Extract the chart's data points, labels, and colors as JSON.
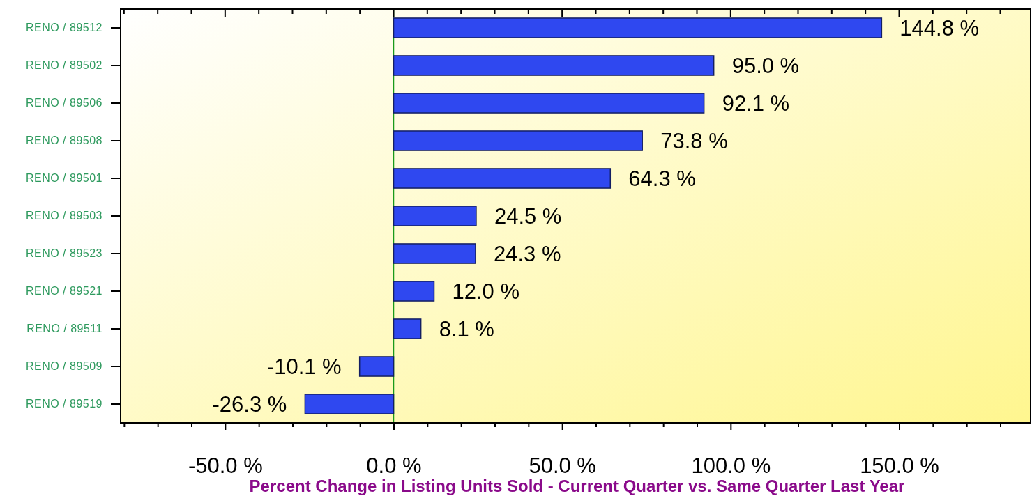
{
  "chart_data": {
    "type": "bar",
    "orientation": "horizontal",
    "xlabel": "Percent Change in Listing Units Sold - Current Quarter vs. Same Quarter Last Year",
    "categories": [
      "RENO / 89512",
      "RENO / 89502",
      "RENO / 89506",
      "RENO / 89508",
      "RENO / 89501",
      "RENO / 89503",
      "RENO / 89523",
      "RENO / 89521",
      "RENO / 89511",
      "RENO / 89509",
      "RENO / 89519"
    ],
    "values": [
      144.8,
      95.0,
      92.1,
      73.8,
      64.3,
      24.5,
      24.3,
      12.0,
      8.1,
      -10.1,
      -26.3
    ],
    "value_labels": [
      "144.8 %",
      "95.0 %",
      "92.1 %",
      "73.8 %",
      "64.3 %",
      "24.5 %",
      "24.3 %",
      "12.0 %",
      "8.1 %",
      "-10.1 %",
      "-26.3 %"
    ],
    "color": "#2f48f0",
    "xlim": [
      -81,
      189
    ],
    "xticks": [
      {
        "value": -80,
        "label": null
      },
      {
        "value": -70,
        "label": null
      },
      {
        "value": -60,
        "label": null
      },
      {
        "value": -50,
        "label": "-50.0 %"
      },
      {
        "value": -40,
        "label": null
      },
      {
        "value": -30,
        "label": null
      },
      {
        "value": -20,
        "label": null
      },
      {
        "value": -10,
        "label": null
      },
      {
        "value": 0,
        "label": "0.0 %"
      },
      {
        "value": 10,
        "label": null
      },
      {
        "value": 20,
        "label": null
      },
      {
        "value": 30,
        "label": null
      },
      {
        "value": 40,
        "label": null
      },
      {
        "value": 50,
        "label": "50.0 %"
      },
      {
        "value": 60,
        "label": null
      },
      {
        "value": 70,
        "label": null
      },
      {
        "value": 80,
        "label": null
      },
      {
        "value": 90,
        "label": null
      },
      {
        "value": 100,
        "label": "100.0 %"
      },
      {
        "value": 110,
        "label": null
      },
      {
        "value": 120,
        "label": null
      },
      {
        "value": 130,
        "label": null
      },
      {
        "value": 140,
        "label": null
      },
      {
        "value": 150,
        "label": "150.0 %"
      },
      {
        "value": 160,
        "label": null
      },
      {
        "value": 170,
        "label": null
      },
      {
        "value": 180,
        "label": null
      }
    ],
    "ref_lines": [
      {
        "axis": "x",
        "value": 0,
        "color": "#1a9a1a"
      }
    ],
    "grid": false
  }
}
